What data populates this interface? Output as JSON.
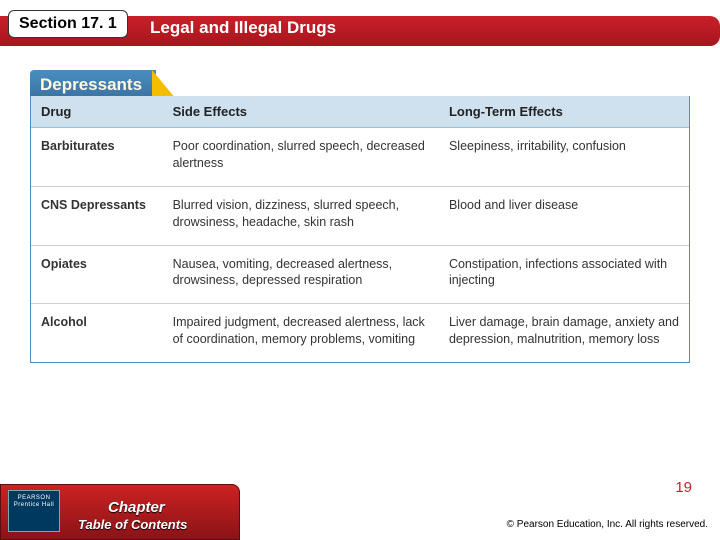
{
  "header": {
    "section_tag": "Section 17. 1",
    "title": "Legal and Illegal Drugs"
  },
  "panel": {
    "heading": "Depressants",
    "heading_bg": "#3f7fb4",
    "heading_text_color": "#fff9e0",
    "accent_color": "#f4bd00",
    "border_color": "#4a8dc0"
  },
  "table": {
    "header_bg": "#cfe1ef",
    "row_border": "#cfcfcf",
    "columns": [
      {
        "key": "drug",
        "label": "Drug"
      },
      {
        "key": "side",
        "label": "Side Effects"
      },
      {
        "key": "long",
        "label": "Long-Term Effects"
      }
    ],
    "rows": [
      {
        "drug": "Barbiturates",
        "side": "Poor coordination, slurred speech, decreased alertness",
        "long": "Sleepiness, irritability, confusion"
      },
      {
        "drug": "CNS Depressants",
        "side": "Blurred vision, dizziness, slurred speech, drowsiness, headache, skin rash",
        "long": "Blood and liver disease"
      },
      {
        "drug": "Opiates",
        "side": "Nausea, vomiting, decreased alertness, drowsiness, depressed respiration",
        "long": "Constipation, infections associated with injecting"
      },
      {
        "drug": "Alcohol",
        "side": "Impaired judgment, decreased alertness, lack of coordination, memory problems, vomiting",
        "long": "Liver damage, brain damage, anxiety and depression, malnutrition, memory loss"
      }
    ]
  },
  "footer": {
    "publisher_top": "PEARSON",
    "publisher_bottom": "Prentice Hall",
    "chapter_btn": "Chapter",
    "toc_btn": "Table of Contents",
    "slide_number": "19",
    "copyright": "© Pearson Education, Inc. All rights reserved."
  },
  "colors": {
    "red_bar": "#b81c24",
    "background": "#ffffff"
  }
}
